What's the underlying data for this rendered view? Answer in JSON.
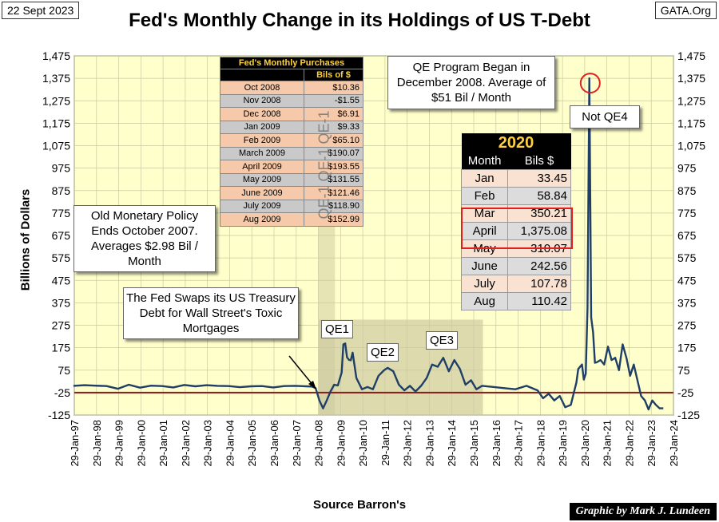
{
  "header": {
    "date": "22 Sept 2023",
    "source_site": "GATA.Org",
    "title": "Fed's Monthly Change in its Holdings of US T-Debt"
  },
  "footer": {
    "xlabel": "Source Barron's",
    "credit": "Graphic by Mark J. Lundeen"
  },
  "colors": {
    "plot_bg": "#ffffcc",
    "shade": "#c7c19a",
    "line": "#1f3f67",
    "zero_line": "#8b1a1a",
    "highlight": "#e02020",
    "table_header_text": "#ffd23c"
  },
  "notes": {
    "qe_program": "QE Program Began in December 2008. Average of $51 Bil / Month",
    "old_policy": "Old Monetary Policy Ends October 2007. Averages $2.98 Bil / Month",
    "swap": "The Fed Swaps its US Treasury Debt for Wall Street's Toxic Mortgages",
    "not_qe4": "Not QE4",
    "qe1": "QE1",
    "qe2": "QE2",
    "qe3": "QE3",
    "qe1_tag": "QE-1 QE-1 QE-1"
  },
  "purchases_table": {
    "title": "Fed's Monthly Purchases",
    "col_header": "Bils of $",
    "rows": [
      {
        "month": "Oct 2008",
        "value": "$10.36"
      },
      {
        "month": "Nov 2008",
        "value": "-$1.55"
      },
      {
        "month": "Dec 2008",
        "value": "$6.91"
      },
      {
        "month": "Jan 2009",
        "value": "$9.33"
      },
      {
        "month": "Feb 2009",
        "value": "$65.10"
      },
      {
        "month": "March 2009",
        "value": "$190.07"
      },
      {
        "month": "April 2009",
        "value": "$193.55"
      },
      {
        "month": "May 2009",
        "value": "$131.55"
      },
      {
        "month": "June 2009",
        "value": "$121.46"
      },
      {
        "month": "July 2009",
        "value": "$118.90"
      },
      {
        "month": "Aug 2009",
        "value": "$152.99"
      }
    ]
  },
  "table_2020": {
    "year": "2020",
    "col_month": "Month",
    "col_value": "Bils $",
    "rows": [
      {
        "month": "Jan",
        "value": "33.45"
      },
      {
        "month": "Feb",
        "value": "58.84"
      },
      {
        "month": "Mar",
        "value": "350.21"
      },
      {
        "month": "April",
        "value": "1,375.08"
      },
      {
        "month": "May",
        "value": "310.07"
      },
      {
        "month": "June",
        "value": "242.56"
      },
      {
        "month": "July",
        "value": "107.78"
      },
      {
        "month": "Aug",
        "value": "110.42"
      }
    ]
  },
  "chart_data": {
    "type": "line",
    "title": "Fed's Monthly Change in its Holdings of US T-Debt",
    "xlabel": "Source Barron's",
    "ylabel": "Billions of Dollars",
    "ylim": [
      -125,
      1475
    ],
    "y_ticks": [
      -125,
      -25,
      75,
      175,
      275,
      375,
      475,
      575,
      675,
      775,
      875,
      975,
      1075,
      1175,
      1275,
      1375,
      1475
    ],
    "y_tick_labels": [
      "-125",
      "-25",
      "75",
      "175",
      "275",
      "375",
      "475",
      "575",
      "675",
      "775",
      "875",
      "975",
      "1,075",
      "1,175",
      "1,275",
      "1,375",
      "1,475"
    ],
    "x_tick_labels": [
      "29-Jan-97",
      "29-Jan-98",
      "29-Jan-99",
      "29-Jan-00",
      "29-Jan-01",
      "29-Jan-02",
      "29-Jan-03",
      "29-Jan-04",
      "29-Jan-05",
      "29-Jan-06",
      "29-Jan-07",
      "29-Jan-08",
      "29-Jan-09",
      "29-Jan-10",
      "29-Jan-11",
      "29-Jan-12",
      "29-Jan-13",
      "29-Jan-14",
      "29-Jan-15",
      "29-Jan-16",
      "29-Jan-17",
      "29-Jan-18",
      "29-Jan-19",
      "29-Jan-20",
      "29-Jan-21",
      "29-Jan-22",
      "29-Jan-23",
      "29-Jan-24"
    ],
    "xlim": [
      "1997-01-29",
      "2024-01-29"
    ],
    "reference_line": -25,
    "grid": true,
    "shaded_regions": [
      {
        "start": "2008-01-29",
        "end": "2015-06-29"
      },
      {
        "start": "2008-10-29",
        "end": "2015-06-29"
      }
    ],
    "highlight_point": {
      "x": "2020-04-29",
      "y": 1375.08
    },
    "series": [
      {
        "x": [
          "1997-01",
          "1997-07",
          "1998-01",
          "1998-07",
          "1999-01",
          "1999-07",
          "2000-01",
          "2000-07",
          "2001-01",
          "2001-07",
          "2002-01",
          "2002-07",
          "2003-01",
          "2003-07",
          "2004-01",
          "2004-07",
          "2005-01",
          "2005-07",
          "2006-01",
          "2006-07",
          "2007-01",
          "2007-07",
          "2007-10",
          "2007-12",
          "2008-02",
          "2008-04",
          "2008-06",
          "2008-08",
          "2008-10",
          "2008-12",
          "2009-02",
          "2009-03",
          "2009-04",
          "2009-05",
          "2009-06",
          "2009-07",
          "2009-08",
          "2009-10",
          "2010-01",
          "2010-04",
          "2010-07",
          "2010-10",
          "2011-01",
          "2011-03",
          "2011-06",
          "2011-09",
          "2011-12",
          "2012-03",
          "2012-06",
          "2012-09",
          "2012-12",
          "2013-03",
          "2013-06",
          "2013-09",
          "2013-12",
          "2014-03",
          "2014-06",
          "2014-09",
          "2014-12",
          "2015-03",
          "2015-06",
          "2015-12",
          "2016-06",
          "2016-12",
          "2017-06",
          "2017-12",
          "2018-03",
          "2018-06",
          "2018-09",
          "2018-12",
          "2019-03",
          "2019-06",
          "2019-09",
          "2019-10",
          "2019-12",
          "2020-01",
          "2020-02",
          "2020-03",
          "2020-04",
          "2020-05",
          "2020-06",
          "2020-07",
          "2020-08",
          "2020-10",
          "2020-12",
          "2021-02",
          "2021-04",
          "2021-06",
          "2021-08",
          "2021-10",
          "2021-12",
          "2022-02",
          "2022-04",
          "2022-06",
          "2022-08",
          "2022-10",
          "2022-12",
          "2023-02",
          "2023-04",
          "2023-06",
          "2023-08"
        ],
        "y": [
          5,
          8,
          6,
          4,
          -8,
          10,
          -3,
          6,
          4,
          -2,
          9,
          3,
          8,
          5,
          4,
          -1,
          3,
          4,
          -2,
          4,
          5,
          3,
          2,
          -5,
          -60,
          -95,
          -60,
          -20,
          10,
          7,
          65,
          190,
          194,
          132,
          121,
          119,
          153,
          40,
          -10,
          0,
          -10,
          50,
          75,
          85,
          70,
          10,
          -15,
          5,
          -20,
          5,
          40,
          100,
          90,
          130,
          70,
          120,
          80,
          10,
          30,
          -10,
          5,
          0,
          -5,
          -10,
          5,
          -15,
          -50,
          -30,
          -60,
          -40,
          -90,
          -80,
          20,
          80,
          100,
          33,
          59,
          350,
          1375,
          310,
          243,
          108,
          110,
          120,
          100,
          180,
          120,
          130,
          75,
          190,
          130,
          50,
          100,
          30,
          -40,
          -60,
          -100,
          -60,
          -80,
          -95,
          -95
        ]
      }
    ]
  }
}
